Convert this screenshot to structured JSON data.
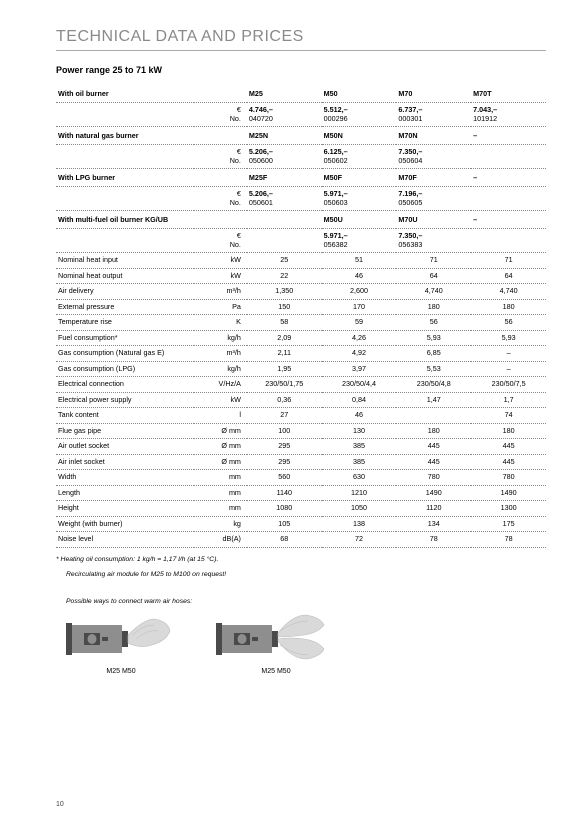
{
  "title": "TECHNICAL DATA AND PRICES",
  "subtitle": "Power range 25 to 71 kW",
  "page_number": "10",
  "footnote": "* Heating oil consumption: 1 kg/h = 1,17 l/h (at 15 °C).",
  "recirc_note": "Recirculating air module for M25 to M100 on request!",
  "diagram_caption": "Possible ways to connect warm air hoses:",
  "diagram_labels": {
    "a": "M25\nM50",
    "b": "M25\nM50"
  },
  "colors": {
    "diagram_body": "#8e8e8e",
    "diagram_dark": "#4a4a4a",
    "hose": "#d9d9d9",
    "page_bg": "#ffffff",
    "title_color": "#8a8a8a"
  },
  "burners": [
    {
      "label": "With oil burner",
      "models": [
        "M25",
        "M50",
        "M70",
        "M70T"
      ],
      "price": [
        "4.746,–",
        "5.512,–",
        "6.737,–",
        "7.043,–"
      ],
      "no": [
        "040720",
        "000296",
        "000301",
        "101912"
      ]
    },
    {
      "label": "With natural gas burner",
      "models": [
        "M25N",
        "M50N",
        "M70N",
        "–"
      ],
      "price": [
        "5.206,–",
        "6.125,–",
        "7.350,–",
        ""
      ],
      "no": [
        "050600",
        "050602",
        "050604",
        ""
      ]
    },
    {
      "label": "With LPG burner",
      "models": [
        "M25F",
        "M50F",
        "M70F",
        "–"
      ],
      "price": [
        "5.206,–",
        "5.971,–",
        "7.196,–",
        ""
      ],
      "no": [
        "050601",
        "050603",
        "050605",
        ""
      ]
    },
    {
      "label": "With multi-fuel oil burner KG/UB",
      "models": [
        "",
        "M50U",
        "M70U",
        "–"
      ],
      "price": [
        "",
        "5.971,–",
        "7.350,–",
        ""
      ],
      "no": [
        "",
        "056382",
        "056383",
        ""
      ]
    }
  ],
  "spec_rows": [
    {
      "label": "Nominal heat input",
      "unit": "kW",
      "v": [
        "25",
        "51",
        "71",
        "71"
      ]
    },
    {
      "label": "Nominal heat output",
      "unit": "kW",
      "v": [
        "22",
        "46",
        "64",
        "64"
      ]
    },
    {
      "label": "Air delivery",
      "unit": "m³/h",
      "v": [
        "1,350",
        "2,600",
        "4,740",
        "4,740"
      ]
    },
    {
      "label": "External pressure",
      "unit": "Pa",
      "v": [
        "150",
        "170",
        "180",
        "180"
      ]
    },
    {
      "label": "Temperature rise",
      "unit": "K",
      "v": [
        "58",
        "59",
        "56",
        "56"
      ]
    },
    {
      "label": "Fuel consumption*",
      "unit": "kg/h",
      "v": [
        "2,09",
        "4,26",
        "5,93",
        "5,93"
      ]
    },
    {
      "label": "Gas consumption (Natural gas E)",
      "unit": "m³/h",
      "v": [
        "2,11",
        "4,92",
        "6,85",
        "–"
      ]
    },
    {
      "label": "Gas consumption (LPG)",
      "unit": "kg/h",
      "v": [
        "1,95",
        "3,97",
        "5,53",
        "–"
      ]
    },
    {
      "label": "Electrical connection",
      "unit": "V/Hz/A",
      "v": [
        "230/50/1,75",
        "230/50/4,4",
        "230/50/4,8",
        "230/50/7,5"
      ]
    },
    {
      "label": "Electrical power supply",
      "unit": "kW",
      "v": [
        "0,36",
        "0,84",
        "1,47",
        "1,7"
      ]
    },
    {
      "label": "Tank content",
      "unit": "l",
      "v": [
        "27",
        "46",
        "",
        "74"
      ]
    },
    {
      "label": "Flue gas pipe",
      "unit": "Ø mm",
      "v": [
        "100",
        "130",
        "180",
        "180"
      ]
    },
    {
      "label": "Air outlet socket",
      "unit": "Ø mm",
      "v": [
        "295",
        "385",
        "445",
        "445"
      ]
    },
    {
      "label": "Air inlet socket",
      "unit": "Ø mm",
      "v": [
        "295",
        "385",
        "445",
        "445"
      ]
    },
    {
      "label": "Width",
      "unit": "mm",
      "v": [
        "560",
        "630",
        "780",
        "780"
      ]
    },
    {
      "label": "Length",
      "unit": "mm",
      "v": [
        "1140",
        "1210",
        "1490",
        "1490"
      ]
    },
    {
      "label": "Height",
      "unit": "mm",
      "v": [
        "1080",
        "1050",
        "1120",
        "1300"
      ]
    },
    {
      "label": "Weight (with burner)",
      "unit": "kg",
      "v": [
        "105",
        "138",
        "134",
        "175"
      ]
    },
    {
      "label": "Noise level",
      "unit": "dB(A)",
      "v": [
        "68",
        "72",
        "78",
        "78"
      ]
    }
  ]
}
